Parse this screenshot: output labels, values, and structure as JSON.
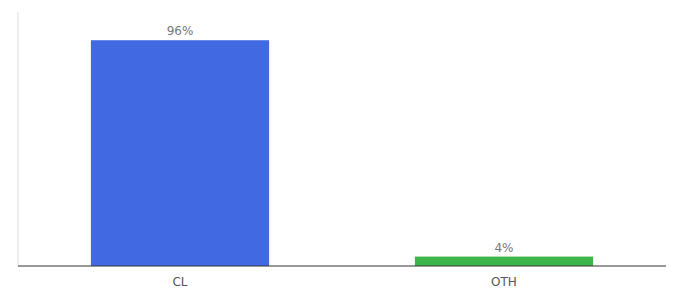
{
  "chart_data": {
    "type": "bar",
    "categories": [
      "CL",
      "OTH"
    ],
    "values": [
      96,
      4
    ],
    "value_labels": [
      "96%",
      "4%"
    ],
    "data_labels": true,
    "colors": [
      "#4169e1",
      "#3cb54a"
    ],
    "ylim": [
      0,
      108
    ],
    "grid": false,
    "tick_labels": "x"
  }
}
